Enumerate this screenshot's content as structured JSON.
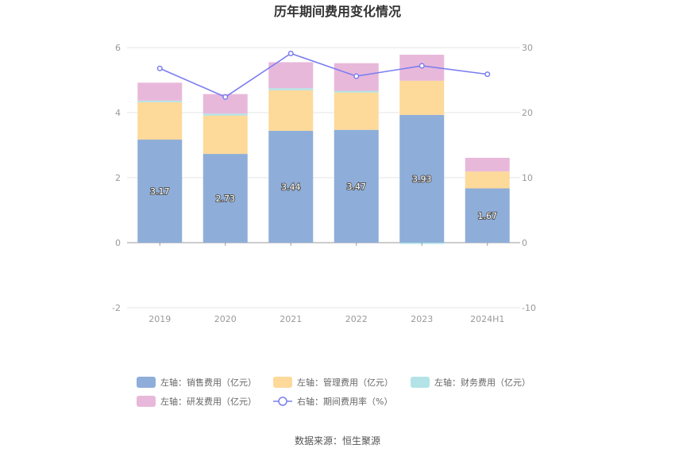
{
  "chart_data": {
    "type": "bar",
    "title": "历年期间费用变化情况",
    "categories": [
      "2019",
      "2020",
      "2021",
      "2022",
      "2023",
      "2024H1"
    ],
    "left_axis": {
      "ylim": [
        -2,
        6
      ],
      "ticks": [
        -2,
        0,
        2,
        4,
        6
      ]
    },
    "right_axis": {
      "ylim": [
        -10,
        30
      ],
      "ticks": [
        -10,
        0,
        10,
        20,
        30
      ]
    },
    "series": [
      {
        "name": "左轴：销售费用（亿元）",
        "axis": "left",
        "color": "#8eaed9",
        "values": [
          3.17,
          2.73,
          3.44,
          3.47,
          3.93,
          1.67
        ],
        "show_labels": true
      },
      {
        "name": "左轴：管理费用（亿元）",
        "axis": "left",
        "color": "#fdd99a",
        "values": [
          1.15,
          1.18,
          1.25,
          1.15,
          1.05,
          0.52
        ]
      },
      {
        "name": "左轴：财务费用（亿元）",
        "axis": "left",
        "color": "#b3e3e6",
        "values": [
          0.05,
          0.06,
          0.06,
          0.05,
          -0.04,
          0.0
        ]
      },
      {
        "name": "左轴：研发费用（亿元）",
        "axis": "left",
        "color": "#e8b8da",
        "values": [
          0.55,
          0.6,
          0.8,
          0.85,
          0.8,
          0.42
        ]
      },
      {
        "name": "右轴：期间费用率（%）",
        "axis": "right",
        "type": "line",
        "color": "#7b7ef0",
        "values": [
          26.8,
          22.4,
          29.1,
          25.6,
          27.2,
          25.9
        ]
      }
    ],
    "source": "数据来源：恒生聚源"
  }
}
